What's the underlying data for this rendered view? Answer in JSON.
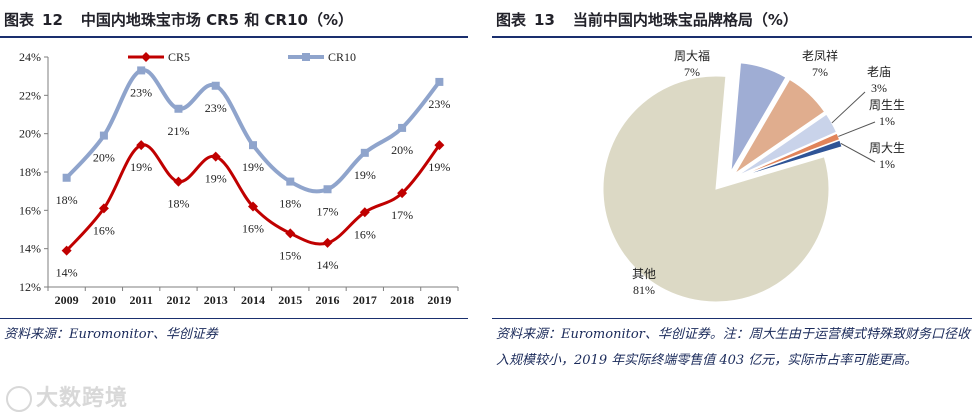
{
  "left_figure": {
    "label": "图表",
    "number": "12",
    "title": "中国内地珠宝市场 CR5 和 CR10（%）",
    "source": "资料来源：Euromonitor、华创证券"
  },
  "right_figure": {
    "label": "图表",
    "number": "13",
    "title": "当前中国内地珠宝品牌格局（%）",
    "source": "资料来源：Euromonitor、华创证券。注：周大生由于运营模式特殊致财务口径收入规模较小，2019 年实际终端零售值 403 亿元，实际市占率可能更高。"
  },
  "watermark": "大数跨境",
  "chart_data": [
    {
      "type": "line",
      "title": "中国内地珠宝市场 CR5 和 CR10（%）",
      "xlabel": "",
      "ylabel": "",
      "categories": [
        "2009",
        "2010",
        "2011",
        "2012",
        "2013",
        "2014",
        "2015",
        "2016",
        "2017",
        "2018",
        "2019"
      ],
      "ylim": [
        12,
        24
      ],
      "yticks": [
        12,
        14,
        16,
        18,
        20,
        22,
        24
      ],
      "ytick_labels": [
        "12%",
        "14%",
        "16%",
        "18%",
        "20%",
        "22%",
        "24%"
      ],
      "legend_position": "top",
      "series": [
        {
          "name": "CR5",
          "color": "#c00000",
          "values": [
            13.9,
            16.1,
            19.4,
            17.5,
            18.8,
            16.2,
            14.8,
            14.3,
            15.9,
            16.9,
            19.4
          ],
          "labels": [
            "14%",
            "16%",
            "19%",
            "18%",
            "19%",
            "16%",
            "15%",
            "14%",
            "16%",
            "17%",
            "19%"
          ]
        },
        {
          "name": "CR10",
          "color": "#8fa4cc",
          "values": [
            17.7,
            19.9,
            23.3,
            21.3,
            22.5,
            19.4,
            17.5,
            17.1,
            19.0,
            20.3,
            22.7
          ],
          "labels": [
            "18%",
            "20%",
            "23%",
            "21%",
            "23%",
            "19%",
            "18%",
            "17%",
            "19%",
            "20%",
            "23%"
          ]
        }
      ]
    },
    {
      "type": "pie",
      "title": "当前中国内地珠宝品牌格局（%）",
      "slices": [
        {
          "name": "周大福",
          "value": 7,
          "label": "7%",
          "color": "#9fadd4"
        },
        {
          "name": "老凤祥",
          "value": 7,
          "label": "7%",
          "color": "#e0ad8e"
        },
        {
          "name": "老庙",
          "value": 3,
          "label": "3%",
          "color": "#c9d3ea"
        },
        {
          "name": "周生生",
          "value": 1,
          "label": "1%",
          "color": "#e1845a"
        },
        {
          "name": "周大生",
          "value": 1,
          "label": "1%",
          "color": "#2f5496"
        },
        {
          "name": "其他",
          "value": 81,
          "label": "81%",
          "color": "#dcd9c5"
        }
      ]
    }
  ]
}
